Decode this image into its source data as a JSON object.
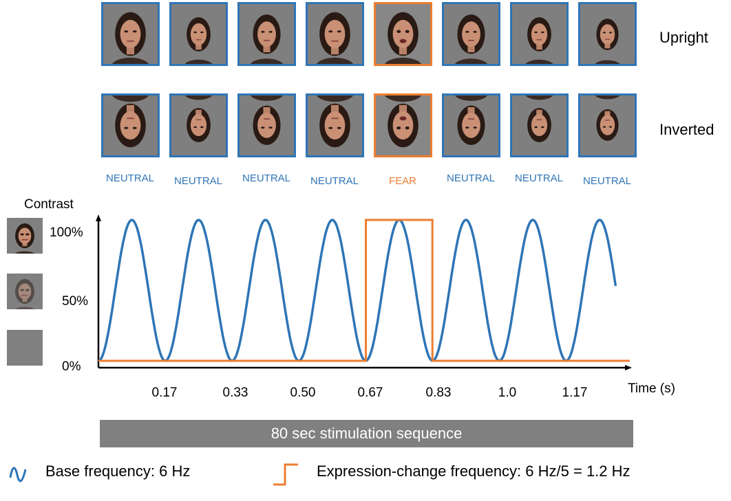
{
  "rows": [
    {
      "label": "Upright",
      "orientation": "upright"
    },
    {
      "label": "Inverted",
      "orientation": "inverted"
    }
  ],
  "faces": [
    {
      "expression": "NEUTRAL",
      "scale": 1.0
    },
    {
      "expression": "NEUTRAL",
      "scale": 0.78
    },
    {
      "expression": "NEUTRAL",
      "scale": 0.9
    },
    {
      "expression": "NEUTRAL",
      "scale": 1.0
    },
    {
      "expression": "FEAR",
      "scale": 1.0
    },
    {
      "expression": "NEUTRAL",
      "scale": 0.9
    },
    {
      "expression": "NEUTRAL",
      "scale": 0.78
    },
    {
      "expression": "NEUTRAL",
      "scale": 0.72
    }
  ],
  "colors": {
    "neutral": "#2e75b6",
    "fear": "#ed7d31",
    "base_wave": "#2e75b6",
    "expression_wave": "#ed7d31",
    "gray": "#808080"
  },
  "contrast_panel": {
    "title": "Contrast",
    "levels": [
      {
        "label": "100%",
        "opacity": 1.0
      },
      {
        "label": "50%",
        "opacity": 0.5
      },
      {
        "label": "0%",
        "opacity": 0.0
      }
    ]
  },
  "chart_data": {
    "type": "line",
    "xlabel": "Time (s)",
    "ylabel": "Contrast",
    "x_ticks": [
      "0.17",
      "0.33",
      "0.50",
      "0.67",
      "0.83",
      "1.0",
      "1.17"
    ],
    "xlim": [
      0,
      1.33
    ],
    "ylim": [
      0,
      100
    ],
    "series": [
      {
        "name": "Base frequency: 6 Hz",
        "kind": "sinusoid",
        "frequency_hz": 6,
        "min": 0,
        "max": 100,
        "end_time": 1.29
      },
      {
        "name": "Expression-change frequency: 6 Hz/5 = 1.2 Hz",
        "kind": "square",
        "on_start": 0.667,
        "on_end": 0.833,
        "low": 0,
        "high": 100
      }
    ]
  },
  "sequence_bar": {
    "label": "80 sec stimulation sequence"
  },
  "legend": [
    {
      "icon": "sine-wave-icon",
      "text": "Base frequency: 6 Hz"
    },
    {
      "icon": "square-pulse-icon",
      "text": "Expression-change  frequency: 6 Hz/5 = 1.2 Hz"
    }
  ]
}
